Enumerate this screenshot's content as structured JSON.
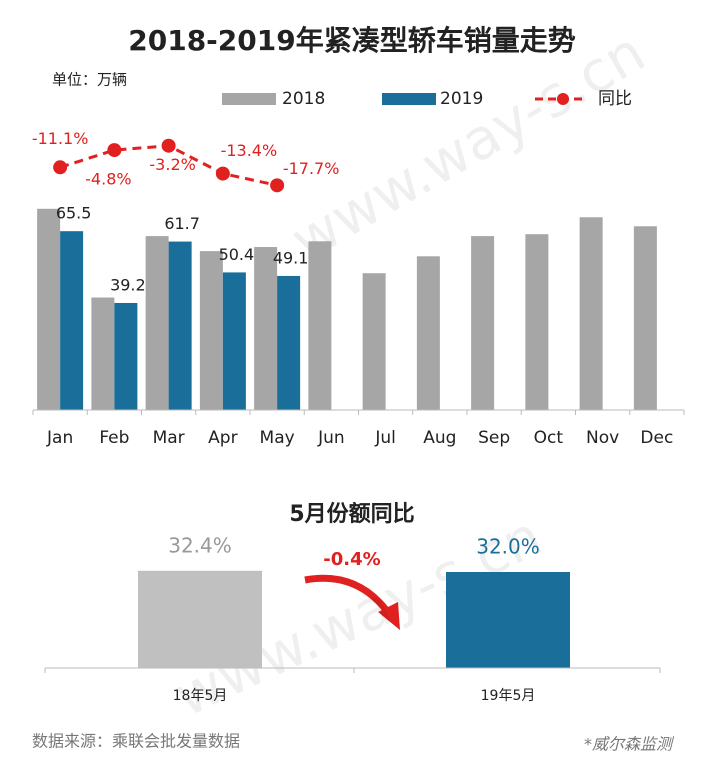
{
  "chart_data": [
    {
      "type": "bar",
      "title": "2018-2019年紧凑型轿车销量走势",
      "unit": "单位：万辆",
      "categories": [
        "Jan",
        "Feb",
        "Mar",
        "Apr",
        "May",
        "Jun",
        "Jul",
        "Aug",
        "Sep",
        "Oct",
        "Nov",
        "Dec"
      ],
      "series": [
        {
          "name": "2018",
          "color": "#a6a6a6",
          "values": [
            73.7,
            41.2,
            63.7,
            58.2,
            59.7,
            61.8,
            50.1,
            56.3,
            63.7,
            64.4,
            70.6,
            67.3
          ]
        },
        {
          "name": "2019",
          "color": "#1a6f9a",
          "values": [
            65.5,
            39.2,
            61.7,
            50.4,
            49.1,
            null,
            null,
            null,
            null,
            null,
            null,
            null
          ]
        },
        {
          "name": "同比",
          "type": "line",
          "color": "#e0211f",
          "axis": "y2",
          "values": [
            -11.1,
            -4.8,
            -3.2,
            -13.4,
            -17.7,
            null,
            null,
            null,
            null,
            null,
            null,
            null
          ],
          "value_labels": [
            "-11.1%",
            "-4.8%",
            "-3.2%",
            "-13.4%",
            "-17.7%",
            null,
            null,
            null,
            null,
            null,
            null,
            null
          ]
        }
      ],
      "ylim": [
        0,
        100
      ],
      "y2lim": [
        -100,
        0
      ]
    },
    {
      "type": "bar",
      "title": "5月份额同比",
      "categories": [
        "18年5月",
        "19年5月"
      ],
      "values": [
        32.4,
        32.0
      ],
      "value_labels": [
        "32.4%",
        "32.0%"
      ],
      "colors": [
        "#c0c0c0",
        "#1a6f9a"
      ],
      "annotation": "-0.4%",
      "ylim": [
        0,
        40
      ]
    }
  ],
  "footer": {
    "source": "数据来源：乘联会批发量数据",
    "note": "*威尔森监测"
  },
  "watermark": "www.way-s.cn"
}
